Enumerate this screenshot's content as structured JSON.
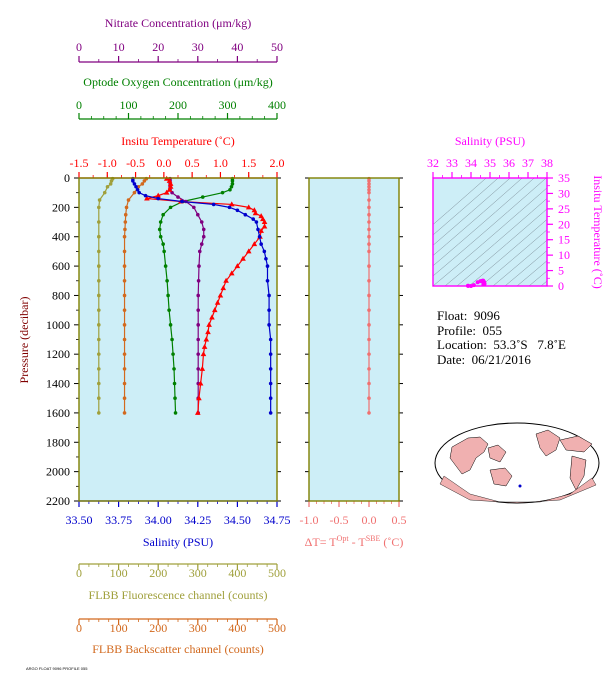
{
  "colors": {
    "nitrate": "#800080",
    "oxygen": "#008000",
    "temperature": "#ff0000",
    "salinity": "#0000cc",
    "fluorescence": "#a0a03c",
    "backscatter": "#d2691e",
    "delta_t": "#f07070",
    "ts_axis": "#ff00ff",
    "plot_bg": "#cdeef7",
    "frame": "#808000"
  },
  "axes": {
    "nitrate": {
      "label": "Nitrate Concentration (μm/kg)",
      "ticks": [
        "0",
        "10",
        "20",
        "30",
        "40",
        "50"
      ]
    },
    "oxygen": {
      "label": "Optode Oxygen Concentration (μm/kg)",
      "ticks": [
        "0",
        "100",
        "200",
        "300",
        "400"
      ]
    },
    "temperature": {
      "label": "Insitu Temperature (˚C)",
      "ticks": [
        "-1.5",
        "-1.0",
        "-0.5",
        "0.0",
        "0.5",
        "1.0",
        "1.5",
        "2.0"
      ]
    },
    "pressure": {
      "label": "Pressure (decibar)",
      "ticks": [
        "0",
        "200",
        "400",
        "600",
        "800",
        "1000",
        "1200",
        "1400",
        "1600",
        "1800",
        "2000",
        "2200"
      ]
    },
    "salinity": {
      "label": "Salinity (PSU)",
      "ticks": [
        "33.50",
        "33.75",
        "34.00",
        "34.25",
        "34.50",
        "34.75"
      ]
    },
    "fluorescence": {
      "label": "FLBB Fluorescence channel (counts)",
      "ticks": [
        "0",
        "100",
        "200",
        "300",
        "400",
        "500"
      ]
    },
    "backscatter": {
      "label": "FLBB Backscatter channel (counts)",
      "ticks": [
        "0",
        "100",
        "200",
        "300",
        "400",
        "500"
      ]
    },
    "delta_t": {
      "label_main": "ΔT= T",
      "label_sup1": "Opt",
      "label_mid": " - T",
      "label_sup2": "SBE",
      "label_end": " (˚C)",
      "ticks": [
        "-1.0",
        "-0.5",
        "0.0",
        "0.5"
      ]
    },
    "ts_salinity": {
      "label": "Salinity (PSU)",
      "ticks": [
        "32",
        "33",
        "34",
        "35",
        "36",
        "37",
        "38"
      ]
    },
    "ts_temperature": {
      "label": "Insitu Temperature (˚C)",
      "ticks": [
        "0",
        "5",
        "10",
        "15",
        "20",
        "25",
        "30",
        "35"
      ]
    }
  },
  "info": {
    "float": "Float:  9096",
    "profile": "Profile:  055",
    "location": "Location:  53.3˚S   7.8˚E",
    "date": "Date:  06/21/2016"
  },
  "footer_text": "ARGO FLOAT 9096 PROFILE 055",
  "chart_data": [
    {
      "type": "line",
      "title": "",
      "ylabel": "Pressure (decibar)",
      "ylim": [
        0,
        2200
      ],
      "y_inverted": true,
      "grid": false,
      "series": [
        {
          "name": "Temperature",
          "xlabel": "Insitu Temperature (˚C)",
          "xlim": [
            -1.5,
            2.0
          ],
          "marker": "triangle",
          "points": [
            [
              0.05,
              5
            ],
            [
              0.1,
              20
            ],
            [
              0.12,
              40
            ],
            [
              0.12,
              60
            ],
            [
              0.1,
              80
            ],
            [
              0.05,
              100
            ],
            [
              -0.1,
              120
            ],
            [
              -0.3,
              140
            ],
            [
              0.3,
              160
            ],
            [
              1.2,
              180
            ],
            [
              1.5,
              200
            ],
            [
              1.6,
              220
            ],
            [
              1.62,
              240
            ],
            [
              1.72,
              260
            ],
            [
              1.75,
              280
            ],
            [
              1.78,
              300
            ],
            [
              1.78,
              330
            ],
            [
              1.72,
              360
            ],
            [
              1.7,
              400
            ],
            [
              1.6,
              450
            ],
            [
              1.5,
              500
            ],
            [
              1.4,
              550
            ],
            [
              1.3,
              600
            ],
            [
              1.2,
              650
            ],
            [
              1.1,
              700
            ],
            [
              1.05,
              750
            ],
            [
              1.0,
              800
            ],
            [
              0.95,
              850
            ],
            [
              0.9,
              900
            ],
            [
              0.85,
              950
            ],
            [
              0.8,
              1000
            ],
            [
              0.78,
              1050
            ],
            [
              0.75,
              1100
            ],
            [
              0.72,
              1150
            ],
            [
              0.7,
              1200
            ],
            [
              0.68,
              1300
            ],
            [
              0.65,
              1400
            ],
            [
              0.62,
              1500
            ],
            [
              0.6,
              1600
            ]
          ]
        },
        {
          "name": "Salinity",
          "xlabel": "Salinity (PSU)",
          "xlim": [
            33.5,
            34.75
          ],
          "marker": "circle",
          "points": [
            [
              33.84,
              5
            ],
            [
              33.84,
              20
            ],
            [
              33.85,
              40
            ],
            [
              33.86,
              60
            ],
            [
              33.87,
              80
            ],
            [
              33.88,
              100
            ],
            [
              33.92,
              120
            ],
            [
              34.0,
              140
            ],
            [
              34.15,
              160
            ],
            [
              34.35,
              180
            ],
            [
              34.45,
              200
            ],
            [
              34.5,
              220
            ],
            [
              34.55,
              250
            ],
            [
              34.6,
              280
            ],
            [
              34.62,
              300
            ],
            [
              34.63,
              350
            ],
            [
              34.64,
              400
            ],
            [
              34.65,
              450
            ],
            [
              34.67,
              500
            ],
            [
              34.68,
              550
            ],
            [
              34.69,
              600
            ],
            [
              34.69,
              700
            ],
            [
              34.7,
              800
            ],
            [
              34.7,
              900
            ],
            [
              34.7,
              1000
            ],
            [
              34.71,
              1100
            ],
            [
              34.71,
              1200
            ],
            [
              34.71,
              1300
            ],
            [
              34.71,
              1400
            ],
            [
              34.71,
              1500
            ],
            [
              34.71,
              1600
            ]
          ]
        },
        {
          "name": "Oxygen",
          "xlabel": "Optode Oxygen Concentration (μm/kg)",
          "xlim": [
            0,
            400
          ],
          "marker": "circle",
          "points": [
            [
              310,
              5
            ],
            [
              310,
              20
            ],
            [
              310,
              40
            ],
            [
              308,
              60
            ],
            [
              305,
              80
            ],
            [
              290,
              100
            ],
            [
              250,
              130
            ],
            [
              210,
              160
            ],
            [
              185,
              200
            ],
            [
              170,
              250
            ],
            [
              165,
              300
            ],
            [
              163,
              350
            ],
            [
              165,
              400
            ],
            [
              170,
              450
            ],
            [
              172,
              500
            ],
            [
              175,
              600
            ],
            [
              178,
              700
            ],
            [
              180,
              800
            ],
            [
              182,
              900
            ],
            [
              185,
              1000
            ],
            [
              188,
              1100
            ],
            [
              190,
              1200
            ],
            [
              192,
              1300
            ],
            [
              193,
              1400
            ],
            [
              194,
              1500
            ],
            [
              195,
              1600
            ]
          ]
        },
        {
          "name": "Nitrate",
          "xlabel": "Nitrate Concentration (μm/kg)",
          "xlim": [
            0,
            50
          ],
          "marker": "circle",
          "points": [
            [
              23,
              5
            ],
            [
              23,
              20
            ],
            [
              23,
              40
            ],
            [
              23,
              60
            ],
            [
              23,
              80
            ],
            [
              23.5,
              100
            ],
            [
              25,
              130
            ],
            [
              27,
              160
            ],
            [
              29,
              200
            ],
            [
              30,
              250
            ],
            [
              31,
              300
            ],
            [
              31.5,
              350
            ],
            [
              31.5,
              400
            ],
            [
              31,
              450
            ],
            [
              30.5,
              500
            ],
            [
              30.3,
              600
            ],
            [
              30.2,
              700
            ],
            [
              30.1,
              800
            ],
            [
              30.1,
              900
            ],
            [
              30.1,
              1000
            ],
            [
              30.1,
              1100
            ],
            [
              30.1,
              1200
            ],
            [
              30.1,
              1300
            ],
            [
              30.1,
              1400
            ],
            [
              30.1,
              1500
            ],
            [
              30.1,
              1600
            ]
          ]
        },
        {
          "name": "Fluorescence",
          "xlabel": "FLBB Fluorescence channel (counts)",
          "xlim": [
            0,
            500
          ],
          "marker": "circle",
          "points": [
            [
              85,
              5
            ],
            [
              82,
              20
            ],
            [
              80,
              40
            ],
            [
              72,
              60
            ],
            [
              65,
              100
            ],
            [
              52,
              150
            ],
            [
              50,
              200
            ],
            [
              50,
              300
            ],
            [
              50,
              400
            ],
            [
              50,
              500
            ],
            [
              50,
              600
            ],
            [
              50,
              700
            ],
            [
              50,
              800
            ],
            [
              50,
              900
            ],
            [
              50,
              1000
            ],
            [
              50,
              1100
            ],
            [
              50,
              1200
            ],
            [
              50,
              1300
            ],
            [
              50,
              1400
            ],
            [
              50,
              1500
            ],
            [
              50,
              1600
            ]
          ]
        },
        {
          "name": "Backscatter",
          "xlabel": "FLBB Backscatter channel (counts)",
          "xlim": [
            0,
            500
          ],
          "marker": "circle",
          "points": [
            [
              170,
              5
            ],
            [
              165,
              20
            ],
            [
              160,
              40
            ],
            [
              150,
              60
            ],
            [
              140,
              100
            ],
            [
              125,
              150
            ],
            [
              120,
              200
            ],
            [
              118,
              250
            ],
            [
              117,
              300
            ],
            [
              116,
              350
            ],
            [
              115,
              400
            ],
            [
              115,
              500
            ],
            [
              115,
              600
            ],
            [
              115,
              700
            ],
            [
              115,
              800
            ],
            [
              115,
              900
            ],
            [
              115,
              1000
            ],
            [
              115,
              1100
            ],
            [
              115,
              1200
            ],
            [
              115,
              1300
            ],
            [
              115,
              1400
            ],
            [
              115,
              1500
            ],
            [
              115,
              1600
            ]
          ]
        }
      ]
    },
    {
      "type": "line",
      "title": "",
      "xlabel": "ΔT= T^Opt - T^SBE (˚C)",
      "xlim": [
        -1.0,
        0.5
      ],
      "ylim": [
        0,
        2200
      ],
      "y_inverted": true,
      "series": [
        {
          "name": "ΔT",
          "points": [
            [
              0.0,
              5
            ],
            [
              0.0,
              20
            ],
            [
              0.0,
              40
            ],
            [
              0.0,
              60
            ],
            [
              0.0,
              80
            ],
            [
              0.0,
              100
            ],
            [
              0.0,
              150
            ],
            [
              0.0,
              200
            ],
            [
              0.0,
              250
            ],
            [
              0.0,
              300
            ],
            [
              0.0,
              350
            ],
            [
              0.0,
              400
            ],
            [
              0.0,
              450
            ],
            [
              0.0,
              500
            ],
            [
              0.0,
              600
            ],
            [
              0.0,
              700
            ],
            [
              0.0,
              800
            ],
            [
              0.0,
              900
            ],
            [
              0.0,
              1000
            ],
            [
              0.0,
              1100
            ],
            [
              0.0,
              1200
            ],
            [
              0.0,
              1300
            ],
            [
              0.0,
              1400
            ],
            [
              0.0,
              1500
            ],
            [
              0.0,
              1600
            ]
          ]
        }
      ]
    },
    {
      "type": "scatter",
      "title": "",
      "xlabel": "Salinity (PSU)",
      "ylabel": "Insitu Temperature (˚C)",
      "xlim": [
        32,
        38
      ],
      "ylim": [
        0,
        35
      ],
      "series": [
        {
          "name": "T-S",
          "points": [
            [
              34.65,
              0.6
            ],
            [
              34.66,
              0.8
            ],
            [
              34.68,
              1.0
            ],
            [
              34.68,
              1.3
            ],
            [
              34.66,
              1.5
            ],
            [
              34.6,
              1.7
            ],
            [
              34.5,
              1.6
            ],
            [
              34.35,
              1.2
            ],
            [
              34.15,
              0.3
            ],
            [
              34.0,
              0.0
            ],
            [
              33.85,
              0.05
            ],
            [
              33.84,
              0.1
            ],
            [
              34.7,
              0.7
            ],
            [
              34.71,
              0.65
            ],
            [
              34.7,
              1.1
            ],
            [
              34.64,
              1.75
            ]
          ]
        }
      ]
    }
  ]
}
